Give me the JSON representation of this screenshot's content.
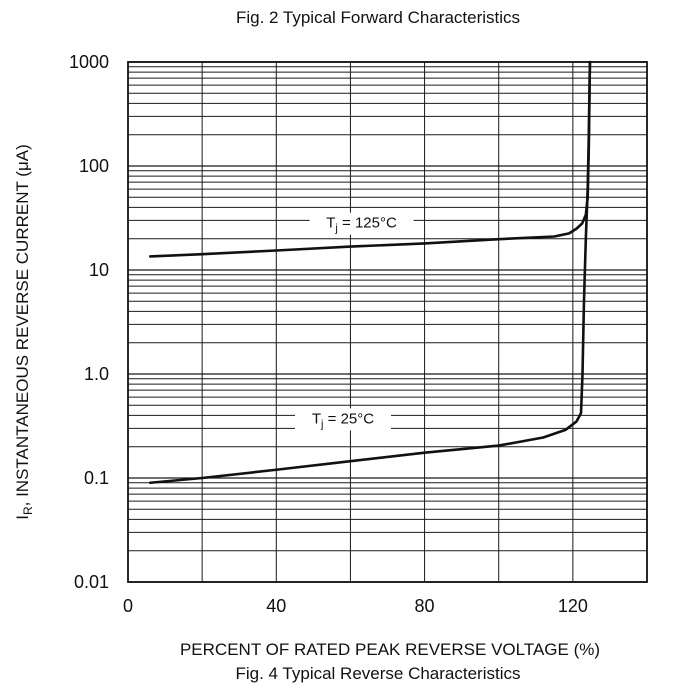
{
  "page": {
    "top_caption": "Fig. 2  Typical Forward Characteristics",
    "bottom_caption": "Fig. 4  Typical Reverse Characteristics"
  },
  "chart_data": {
    "type": "line",
    "title": "",
    "xlabel": "PERCENT OF RATED PEAK REVERSE VOLTAGE (%)",
    "ylabel": {
      "prefix": "I",
      "subscript": "R",
      "text": ", INSTANTANEOUS REVERSE CURRENT (",
      "mu": "μ",
      "unit": "A)"
    },
    "xlim": [
      0,
      140
    ],
    "ylim": [
      0.01,
      1000
    ],
    "yscale": "log",
    "xticks": [
      0,
      40,
      80,
      120
    ],
    "yticks": [
      0.01,
      0.1,
      1.0,
      10,
      100,
      1000
    ],
    "xtick_labels": [
      "0",
      "40",
      "80",
      "120"
    ],
    "ytick_labels": [
      "0.01",
      "0.1",
      "1.0",
      "10",
      "100",
      "1000"
    ],
    "grid": true,
    "series": [
      {
        "name": "T_j = 125°C",
        "label": {
          "prefix": "T",
          "subscript": "j",
          "suffix": " = 125°C"
        },
        "points": [
          [
            6,
            13.5
          ],
          [
            20,
            14.2
          ],
          [
            40,
            15.4
          ],
          [
            60,
            16.8
          ],
          [
            80,
            18.0
          ],
          [
            100,
            19.8
          ],
          [
            115,
            21.0
          ],
          [
            119,
            22.5
          ],
          [
            121,
            25.0
          ],
          [
            122.5,
            28.0
          ],
          [
            123.5,
            34.0
          ],
          [
            124,
            50.0
          ],
          [
            124.3,
            150.0
          ],
          [
            124.6,
            1000.0
          ]
        ]
      },
      {
        "name": "T_j = 25°C",
        "label": {
          "prefix": "T",
          "subscript": "j",
          "suffix": " = 25°C"
        },
        "points": [
          [
            6,
            0.09
          ],
          [
            20,
            0.1
          ],
          [
            40,
            0.12
          ],
          [
            60,
            0.145
          ],
          [
            80,
            0.175
          ],
          [
            100,
            0.205
          ],
          [
            112,
            0.245
          ],
          [
            118,
            0.29
          ],
          [
            121,
            0.35
          ],
          [
            122.2,
            0.42
          ],
          [
            122.6,
            1.0
          ],
          [
            123,
            5.0
          ],
          [
            123.5,
            20.0
          ],
          [
            124,
            60.0
          ],
          [
            124.3,
            200.0
          ],
          [
            124.6,
            1000.0
          ]
        ]
      }
    ]
  }
}
